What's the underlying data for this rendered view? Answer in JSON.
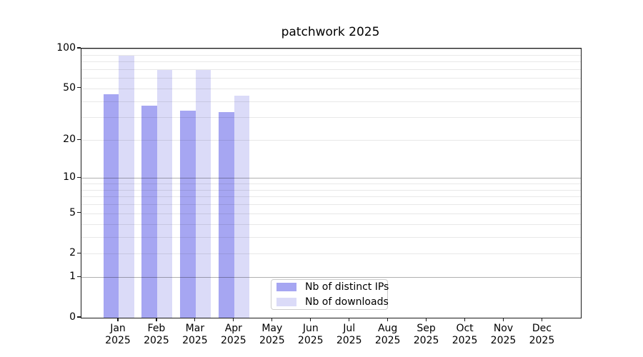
{
  "title": "patchwork 2025",
  "chart_data": {
    "type": "bar",
    "title": "patchwork 2025",
    "categories": [
      "Jan",
      "Feb",
      "Mar",
      "Apr",
      "May",
      "Jun",
      "Jul",
      "Aug",
      "Sep",
      "Oct",
      "Nov",
      "Dec"
    ],
    "year_label": "2025",
    "series": [
      {
        "name": "Nb of distinct IPs",
        "color": "#a6a6f2",
        "values": [
          45,
          37,
          34,
          33,
          0,
          0,
          0,
          0,
          0,
          0,
          0,
          0
        ]
      },
      {
        "name": "Nb of downloads",
        "color": "#dbdbf8",
        "values": [
          88,
          69,
          69,
          44,
          0,
          0,
          0,
          0,
          0,
          0,
          0,
          0
        ]
      }
    ],
    "xlabel": "",
    "ylabel": "",
    "y_axis": {
      "scale": "log10(1+v)",
      "ticks": [
        0,
        1,
        2,
        5,
        10,
        20,
        50,
        100
      ],
      "ylim": [
        0,
        100
      ]
    },
    "gridlines": {
      "major": [
        1,
        10,
        100
      ],
      "minor": [
        2,
        3,
        4,
        5,
        6,
        7,
        8,
        9,
        20,
        30,
        40,
        50,
        60,
        70,
        80,
        90
      ],
      "vertical": false
    },
    "legend": {
      "position": "lower-center-inside",
      "entries": [
        "Nb of distinct IPs",
        "Nb of downloads"
      ]
    }
  },
  "colors": {
    "series_dark": "#a6a6f2",
    "series_light": "#dbdbf8",
    "grid_major": "#b0b0b0",
    "grid_minor": "#e8e8e8",
    "spine": "#1a1a1a",
    "background": "#ffffff",
    "legend_border": "#cccccc"
  }
}
